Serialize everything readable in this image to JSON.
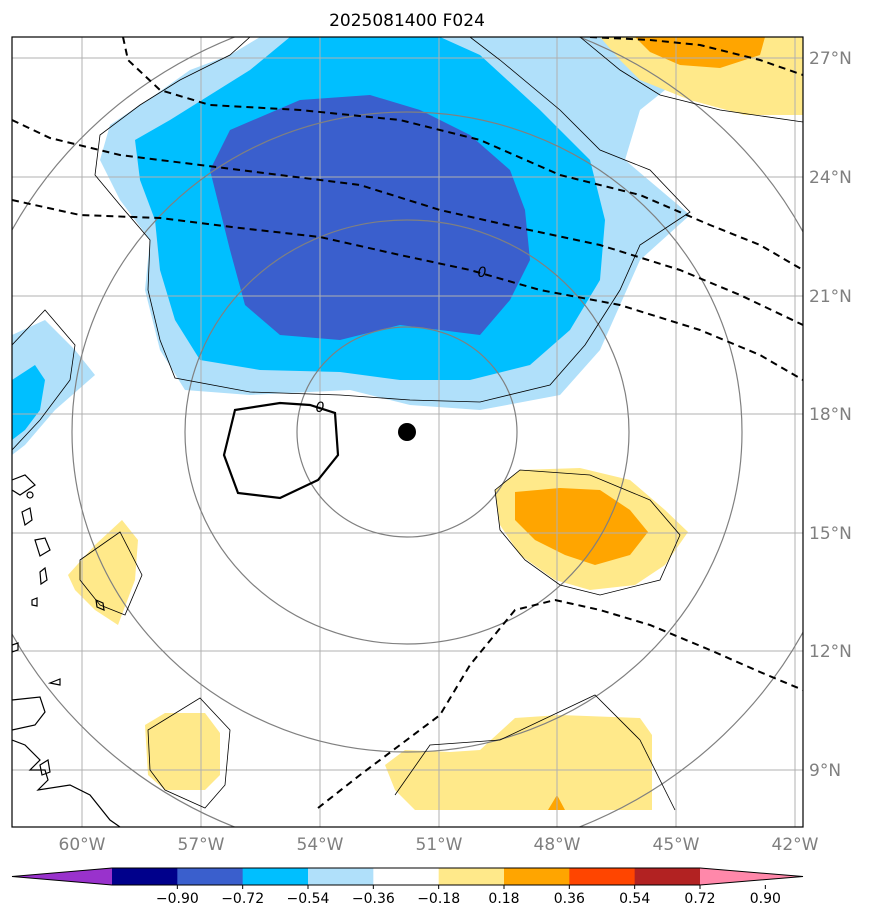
{
  "title": "2025081400 F024",
  "map": {
    "lat_labels": [
      "27°N",
      "24°N",
      "21°N",
      "18°N",
      "15°N",
      "12°N",
      "9°N"
    ],
    "lon_labels": [
      "60°W",
      "57°W",
      "54°W",
      "51°W",
      "48°W",
      "45°W",
      "42°W"
    ],
    "contour_labels": [
      "0",
      "0"
    ],
    "storm_center": {
      "lat": 17.5,
      "lon": -51.8
    }
  },
  "colorbar": {
    "labels": [
      "−0.90",
      "−0.72",
      "−0.54",
      "−0.36",
      "−0.18",
      "0.18",
      "0.36",
      "0.54",
      "0.72",
      "0.90"
    ],
    "colors": [
      "#9932cc",
      "#00008b",
      "#3a5fcd",
      "#00bfff",
      "#b0e0fa",
      "#ffffff",
      "#ffe98a",
      "#ffa500",
      "#ff4500",
      "#b22222",
      "#ff88aa"
    ]
  },
  "colors": {
    "frame": "#000000",
    "grid": "#b0b0b0",
    "range_rings": "#808080",
    "tick_text": "#7f7f7f"
  }
}
